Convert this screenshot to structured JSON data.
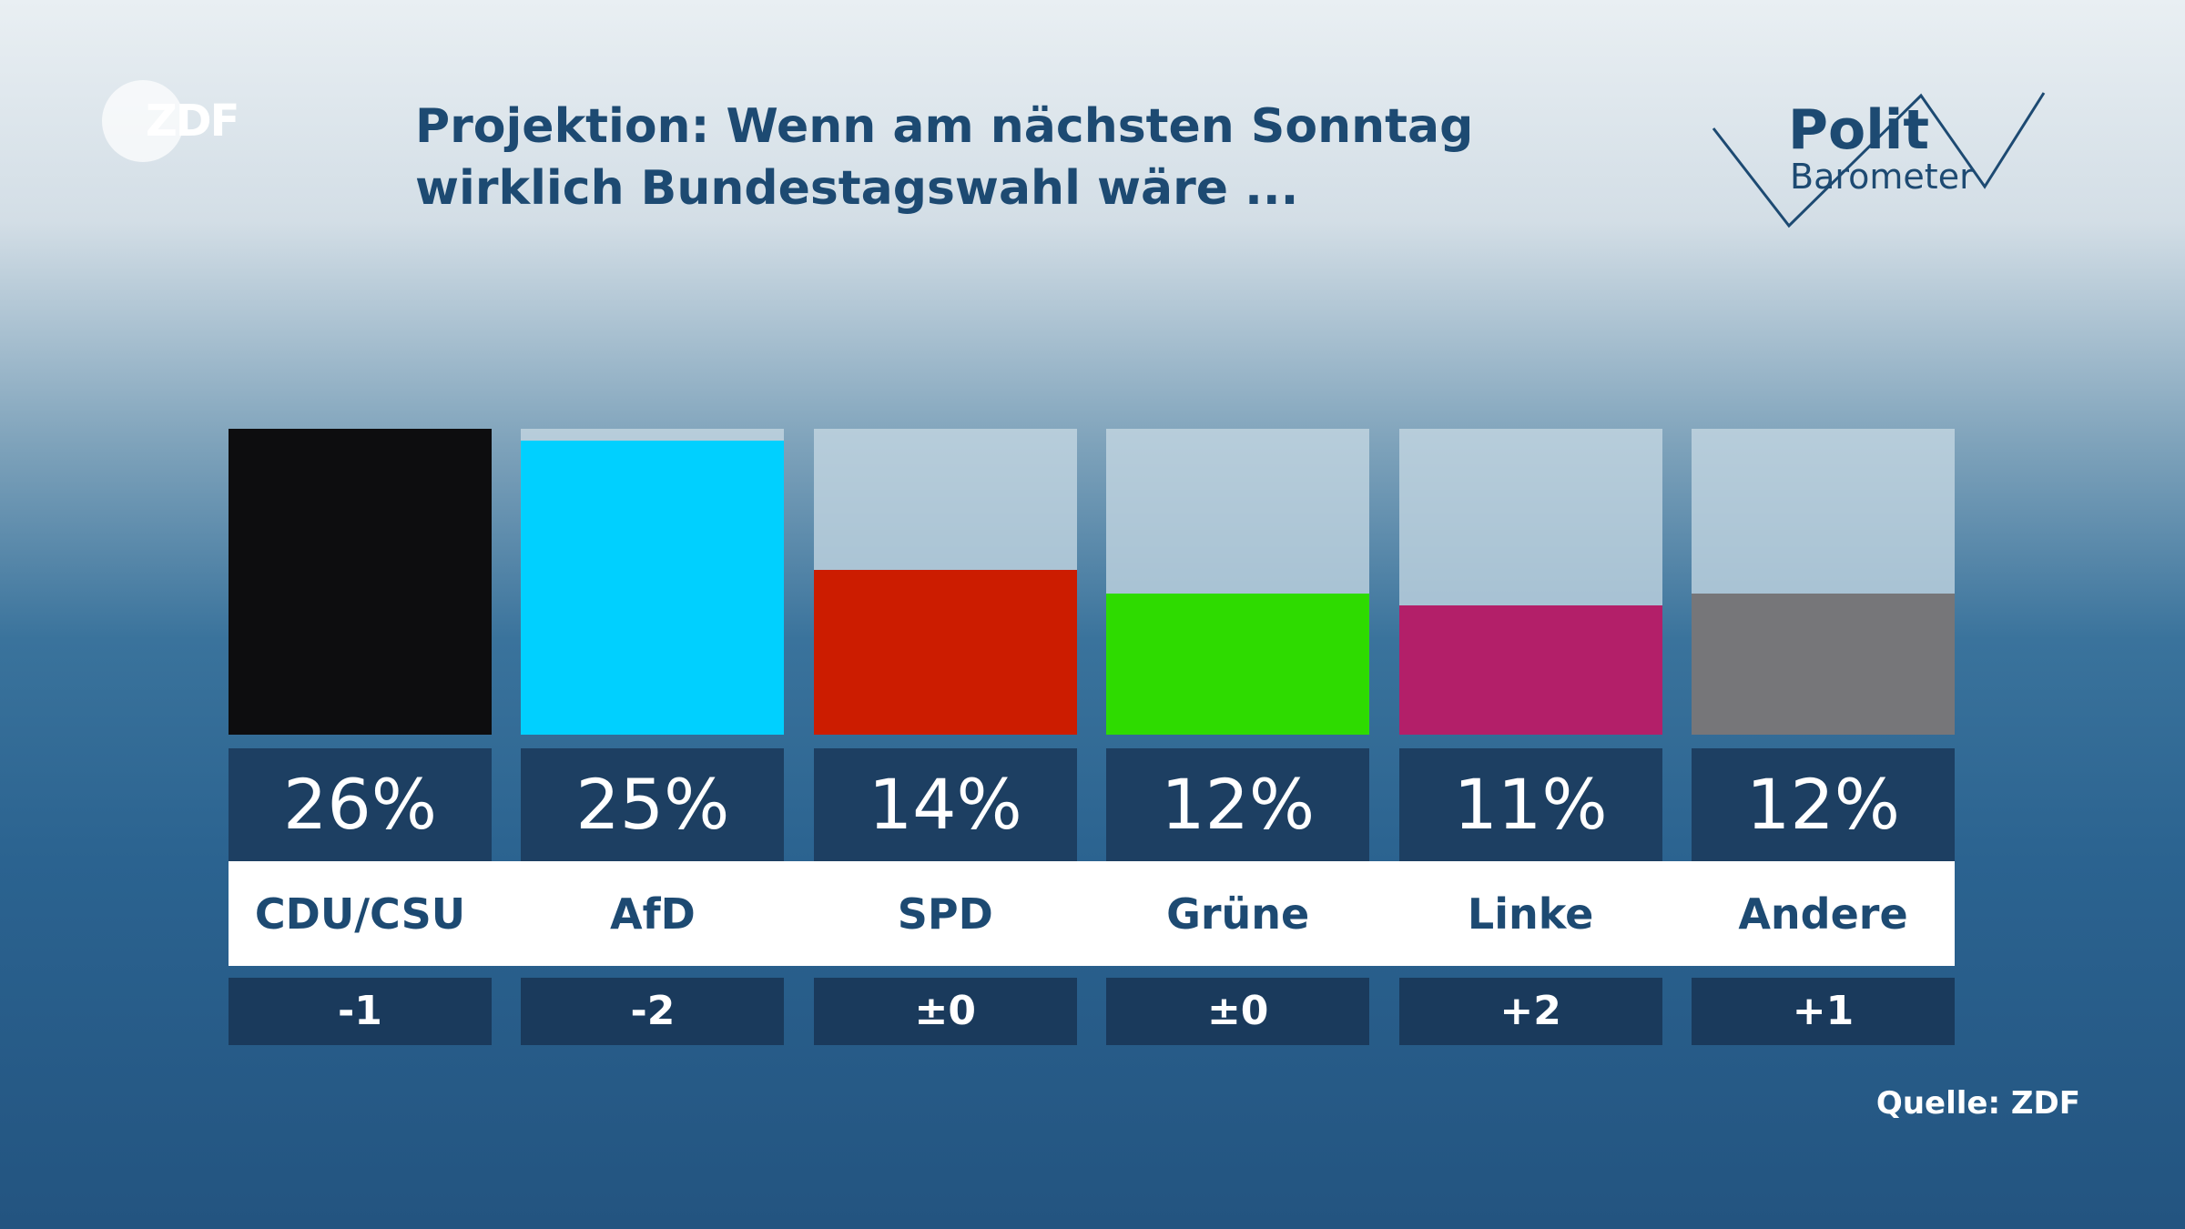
{
  "logo": "ZDF",
  "brand": [
    "Polit",
    "Barometer"
  ],
  "chart_data": {
    "type": "bar",
    "title": "Projektion: Wenn am nächsten Sonntag wirklich Bundestagswahl wäre ...",
    "categories": [
      "CDU/CSU",
      "AfD",
      "SPD",
      "Grüne",
      "Linke",
      "Andere"
    ],
    "values": [
      26,
      25,
      14,
      12,
      11,
      12
    ],
    "value_labels": [
      "26%",
      "25%",
      "14%",
      "12%",
      "11%",
      "12%"
    ],
    "changes": [
      "-1",
      "-2",
      "±0",
      "±0",
      "+2",
      "+1"
    ],
    "colors": [
      "#0d0d0f",
      "#00d0ff",
      "#cc1c00",
      "#2edb00",
      "#b31f69",
      "#767679"
    ],
    "ylim": [
      0,
      26
    ],
    "source": "Quelle: ZDF"
  }
}
